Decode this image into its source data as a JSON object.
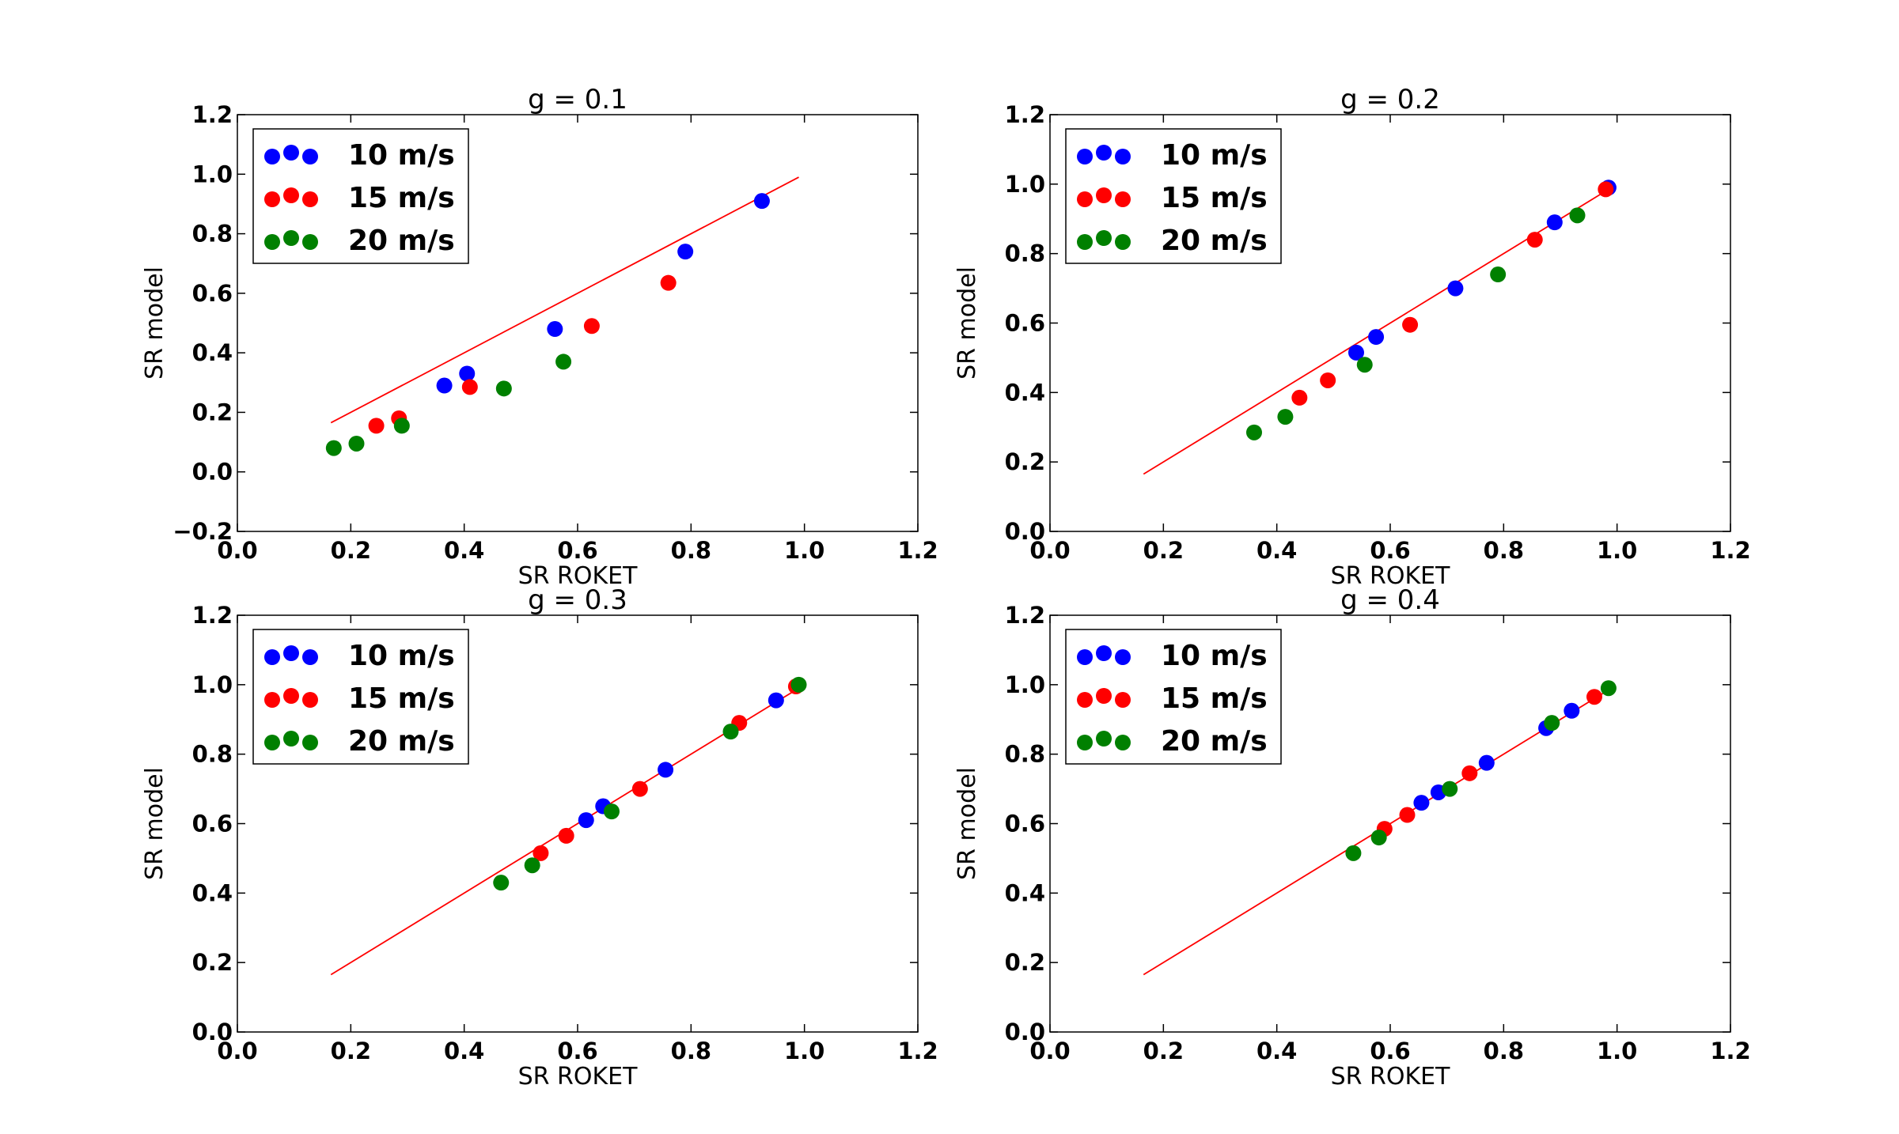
{
  "chart_data": [
    {
      "type": "scatter",
      "title": "g = 0.1",
      "xlabel": "SR ROKET",
      "ylabel": "SR model",
      "xlim": [
        0.0,
        1.2
      ],
      "ylim": [
        -0.2,
        1.2
      ],
      "xticks": [
        "0.0",
        "0.2",
        "0.4",
        "0.6",
        "0.8",
        "1.0",
        "1.2"
      ],
      "yticks": [
        "−0.2",
        "0.0",
        "0.2",
        "0.4",
        "0.6",
        "0.8",
        "1.0",
        "1.2"
      ],
      "reference_line": {
        "x": [
          0.165,
          0.99
        ],
        "y": [
          0.165,
          0.99
        ]
      },
      "series": [
        {
          "name": "10 m/s",
          "color": "#0000ff",
          "points": [
            [
              0.365,
              0.29
            ],
            [
              0.405,
              0.33
            ],
            [
              0.56,
              0.48
            ],
            [
              0.79,
              0.74
            ],
            [
              0.925,
              0.91
            ]
          ]
        },
        {
          "name": "15 m/s",
          "color": "#ff0000",
          "points": [
            [
              0.245,
              0.155
            ],
            [
              0.285,
              0.18
            ],
            [
              0.41,
              0.285
            ],
            [
              0.625,
              0.49
            ],
            [
              0.76,
              0.635
            ]
          ]
        },
        {
          "name": "20 m/s",
          "color": "#008000",
          "points": [
            [
              0.17,
              0.08
            ],
            [
              0.21,
              0.095
            ],
            [
              0.29,
              0.155
            ],
            [
              0.47,
              0.28
            ],
            [
              0.575,
              0.37
            ]
          ]
        }
      ]
    },
    {
      "type": "scatter",
      "title": "g = 0.2",
      "xlabel": "SR ROKET",
      "ylabel": "SR model",
      "xlim": [
        0.0,
        1.2
      ],
      "ylim": [
        0.0,
        1.2
      ],
      "xticks": [
        "0.0",
        "0.2",
        "0.4",
        "0.6",
        "0.8",
        "1.0",
        "1.2"
      ],
      "yticks": [
        "0.0",
        "0.2",
        "0.4",
        "0.6",
        "0.8",
        "1.0",
        "1.2"
      ],
      "reference_line": {
        "x": [
          0.165,
          0.99
        ],
        "y": [
          0.165,
          0.99
        ]
      },
      "series": [
        {
          "name": "10 m/s",
          "color": "#0000ff",
          "points": [
            [
              0.54,
              0.515
            ],
            [
              0.575,
              0.56
            ],
            [
              0.715,
              0.7
            ],
            [
              0.89,
              0.89
            ],
            [
              0.985,
              0.99
            ]
          ]
        },
        {
          "name": "15 m/s",
          "color": "#ff0000",
          "points": [
            [
              0.44,
              0.385
            ],
            [
              0.49,
              0.435
            ],
            [
              0.635,
              0.595
            ],
            [
              0.855,
              0.84
            ],
            [
              0.98,
              0.985
            ]
          ]
        },
        {
          "name": "20 m/s",
          "color": "#008000",
          "points": [
            [
              0.36,
              0.285
            ],
            [
              0.415,
              0.33
            ],
            [
              0.555,
              0.48
            ],
            [
              0.79,
              0.74
            ],
            [
              0.93,
              0.91
            ]
          ]
        }
      ]
    },
    {
      "type": "scatter",
      "title": "g = 0.3",
      "xlabel": "SR ROKET",
      "ylabel": "SR model",
      "xlim": [
        0.0,
        1.2
      ],
      "ylim": [
        0.0,
        1.2
      ],
      "xticks": [
        "0.0",
        "0.2",
        "0.4",
        "0.6",
        "0.8",
        "1.0",
        "1.2"
      ],
      "yticks": [
        "0.0",
        "0.2",
        "0.4",
        "0.6",
        "0.8",
        "1.0",
        "1.2"
      ],
      "reference_line": {
        "x": [
          0.165,
          0.99
        ],
        "y": [
          0.165,
          0.99
        ]
      },
      "series": [
        {
          "name": "10 m/s",
          "color": "#0000ff",
          "points": [
            [
              0.615,
              0.61
            ],
            [
              0.645,
              0.65
            ],
            [
              0.755,
              0.755
            ],
            [
              0.95,
              0.955
            ]
          ]
        },
        {
          "name": "15 m/s",
          "color": "#ff0000",
          "points": [
            [
              0.535,
              0.515
            ],
            [
              0.58,
              0.565
            ],
            [
              0.71,
              0.7
            ],
            [
              0.885,
              0.89
            ],
            [
              0.985,
              0.995
            ]
          ]
        },
        {
          "name": "20 m/s",
          "color": "#008000",
          "points": [
            [
              0.465,
              0.43
            ],
            [
              0.52,
              0.48
            ],
            [
              0.66,
              0.635
            ],
            [
              0.87,
              0.865
            ],
            [
              0.99,
              1.0
            ]
          ]
        }
      ]
    },
    {
      "type": "scatter",
      "title": "g = 0.4",
      "xlabel": "SR ROKET",
      "ylabel": "SR model",
      "xlim": [
        0.0,
        1.2
      ],
      "ylim": [
        0.0,
        1.2
      ],
      "xticks": [
        "0.0",
        "0.2",
        "0.4",
        "0.6",
        "0.8",
        "1.0",
        "1.2"
      ],
      "yticks": [
        "0.0",
        "0.2",
        "0.4",
        "0.6",
        "0.8",
        "1.0",
        "1.2"
      ],
      "reference_line": {
        "x": [
          0.165,
          0.99
        ],
        "y": [
          0.165,
          0.99
        ]
      },
      "series": [
        {
          "name": "10 m/s",
          "color": "#0000ff",
          "points": [
            [
              0.655,
              0.66
            ],
            [
              0.685,
              0.69
            ],
            [
              0.77,
              0.775
            ],
            [
              0.875,
              0.875
            ],
            [
              0.92,
              0.925
            ]
          ]
        },
        {
          "name": "15 m/s",
          "color": "#ff0000",
          "points": [
            [
              0.59,
              0.585
            ],
            [
              0.63,
              0.625
            ],
            [
              0.74,
              0.745
            ],
            [
              0.96,
              0.965
            ]
          ]
        },
        {
          "name": "20 m/s",
          "color": "#008000",
          "points": [
            [
              0.535,
              0.515
            ],
            [
              0.58,
              0.56
            ],
            [
              0.705,
              0.7
            ],
            [
              0.885,
              0.89
            ],
            [
              0.985,
              0.99
            ]
          ]
        }
      ]
    }
  ]
}
